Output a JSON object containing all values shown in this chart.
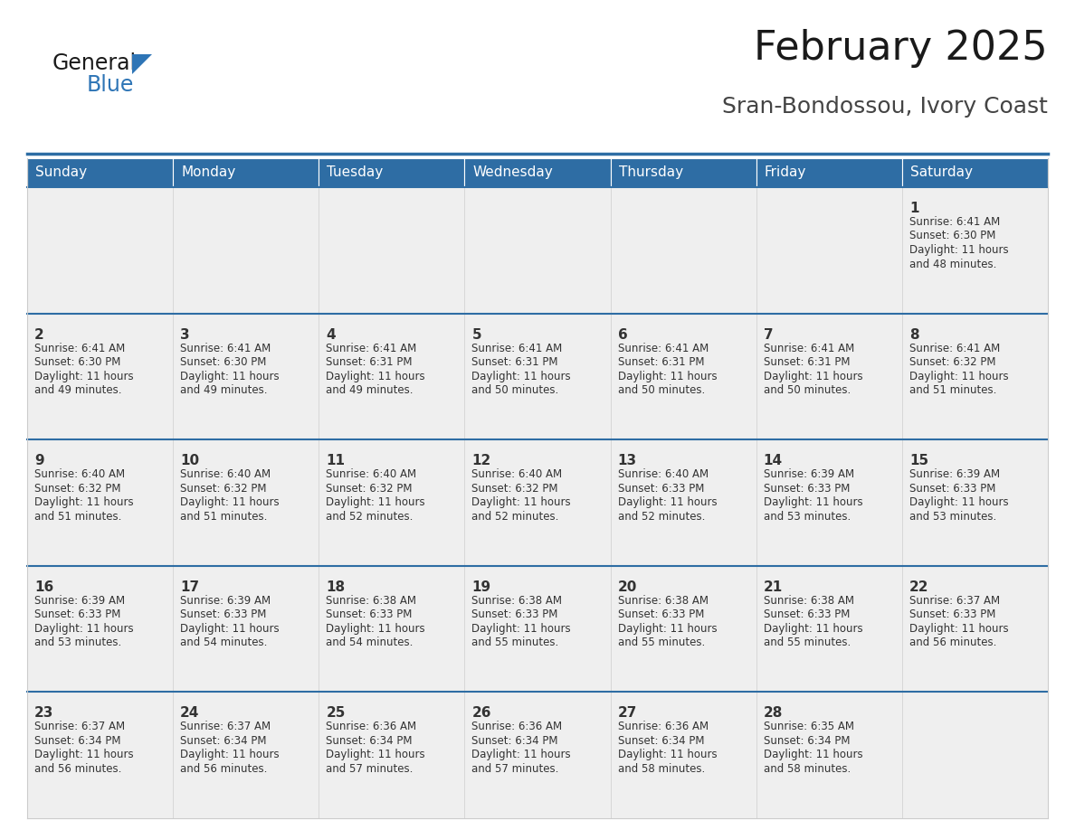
{
  "title": "February 2025",
  "subtitle": "Sran-Bondossou, Ivory Coast",
  "header_bg": "#2E6DA4",
  "header_text_color": "#FFFFFF",
  "cell_bg_light": "#EFEFEF",
  "cell_bg_white": "#FFFFFF",
  "day_number_color": "#333333",
  "cell_text_color": "#333333",
  "week_border_color": "#2E6DA4",
  "days_of_week": [
    "Sunday",
    "Monday",
    "Tuesday",
    "Wednesday",
    "Thursday",
    "Friday",
    "Saturday"
  ],
  "calendar_data": [
    [
      null,
      null,
      null,
      null,
      null,
      null,
      {
        "day": 1,
        "sunrise": "6:41 AM",
        "sunset": "6:30 PM",
        "daylight": "11 hours and 48 minutes."
      }
    ],
    [
      {
        "day": 2,
        "sunrise": "6:41 AM",
        "sunset": "6:30 PM",
        "daylight": "11 hours and 49 minutes."
      },
      {
        "day": 3,
        "sunrise": "6:41 AM",
        "sunset": "6:30 PM",
        "daylight": "11 hours and 49 minutes."
      },
      {
        "day": 4,
        "sunrise": "6:41 AM",
        "sunset": "6:31 PM",
        "daylight": "11 hours and 49 minutes."
      },
      {
        "day": 5,
        "sunrise": "6:41 AM",
        "sunset": "6:31 PM",
        "daylight": "11 hours and 50 minutes."
      },
      {
        "day": 6,
        "sunrise": "6:41 AM",
        "sunset": "6:31 PM",
        "daylight": "11 hours and 50 minutes."
      },
      {
        "day": 7,
        "sunrise": "6:41 AM",
        "sunset": "6:31 PM",
        "daylight": "11 hours and 50 minutes."
      },
      {
        "day": 8,
        "sunrise": "6:41 AM",
        "sunset": "6:32 PM",
        "daylight": "11 hours and 51 minutes."
      }
    ],
    [
      {
        "day": 9,
        "sunrise": "6:40 AM",
        "sunset": "6:32 PM",
        "daylight": "11 hours and 51 minutes."
      },
      {
        "day": 10,
        "sunrise": "6:40 AM",
        "sunset": "6:32 PM",
        "daylight": "11 hours and 51 minutes."
      },
      {
        "day": 11,
        "sunrise": "6:40 AM",
        "sunset": "6:32 PM",
        "daylight": "11 hours and 52 minutes."
      },
      {
        "day": 12,
        "sunrise": "6:40 AM",
        "sunset": "6:32 PM",
        "daylight": "11 hours and 52 minutes."
      },
      {
        "day": 13,
        "sunrise": "6:40 AM",
        "sunset": "6:33 PM",
        "daylight": "11 hours and 52 minutes."
      },
      {
        "day": 14,
        "sunrise": "6:39 AM",
        "sunset": "6:33 PM",
        "daylight": "11 hours and 53 minutes."
      },
      {
        "day": 15,
        "sunrise": "6:39 AM",
        "sunset": "6:33 PM",
        "daylight": "11 hours and 53 minutes."
      }
    ],
    [
      {
        "day": 16,
        "sunrise": "6:39 AM",
        "sunset": "6:33 PM",
        "daylight": "11 hours and 53 minutes."
      },
      {
        "day": 17,
        "sunrise": "6:39 AM",
        "sunset": "6:33 PM",
        "daylight": "11 hours and 54 minutes."
      },
      {
        "day": 18,
        "sunrise": "6:38 AM",
        "sunset": "6:33 PM",
        "daylight": "11 hours and 54 minutes."
      },
      {
        "day": 19,
        "sunrise": "6:38 AM",
        "sunset": "6:33 PM",
        "daylight": "11 hours and 55 minutes."
      },
      {
        "day": 20,
        "sunrise": "6:38 AM",
        "sunset": "6:33 PM",
        "daylight": "11 hours and 55 minutes."
      },
      {
        "day": 21,
        "sunrise": "6:38 AM",
        "sunset": "6:33 PM",
        "daylight": "11 hours and 55 minutes."
      },
      {
        "day": 22,
        "sunrise": "6:37 AM",
        "sunset": "6:33 PM",
        "daylight": "11 hours and 56 minutes."
      }
    ],
    [
      {
        "day": 23,
        "sunrise": "6:37 AM",
        "sunset": "6:34 PM",
        "daylight": "11 hours and 56 minutes."
      },
      {
        "day": 24,
        "sunrise": "6:37 AM",
        "sunset": "6:34 PM",
        "daylight": "11 hours and 56 minutes."
      },
      {
        "day": 25,
        "sunrise": "6:36 AM",
        "sunset": "6:34 PM",
        "daylight": "11 hours and 57 minutes."
      },
      {
        "day": 26,
        "sunrise": "6:36 AM",
        "sunset": "6:34 PM",
        "daylight": "11 hours and 57 minutes."
      },
      {
        "day": 27,
        "sunrise": "6:36 AM",
        "sunset": "6:34 PM",
        "daylight": "11 hours and 58 minutes."
      },
      {
        "day": 28,
        "sunrise": "6:35 AM",
        "sunset": "6:34 PM",
        "daylight": "11 hours and 58 minutes."
      },
      null
    ]
  ],
  "logo_text_general": "General",
  "logo_text_blue": "Blue",
  "logo_triangle_color": "#2E75B6",
  "title_fontsize": 32,
  "subtitle_fontsize": 18,
  "header_fontsize": 11,
  "day_num_fontsize": 11,
  "cell_text_fontsize": 8.5
}
